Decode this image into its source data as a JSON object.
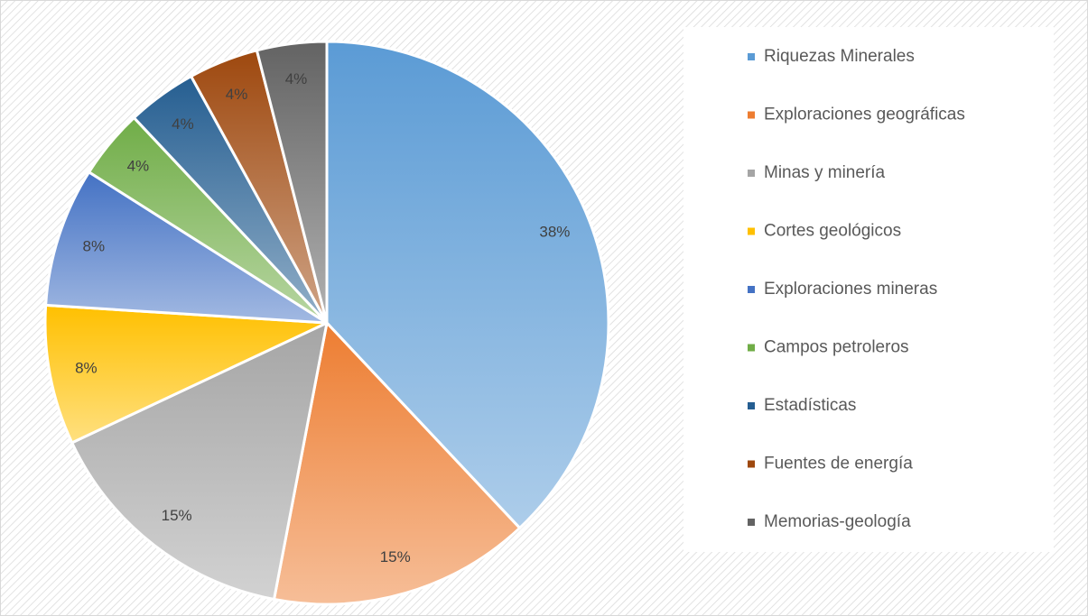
{
  "chart_data": {
    "type": "pie",
    "categories": [
      "Riquezas Minerales",
      "Exploraciones geográficas",
      "Minas y minería",
      "Cortes geológicos",
      "Exploraciones mineras",
      "Campos petroleros",
      "Estadísticas",
      "Fuentes de energía",
      "Memorias-geología"
    ],
    "values": [
      38,
      15,
      15,
      8,
      8,
      4,
      4,
      4,
      4
    ],
    "value_labels": [
      "38%",
      "15%",
      "15%",
      "8%",
      "8%",
      "4%",
      "4%",
      "4%",
      "4%"
    ],
    "colors": [
      "#5b9bd5",
      "#ed7d31",
      "#a5a5a5",
      "#ffc000",
      "#4472c4",
      "#70ad47",
      "#255e91",
      "#9e480e",
      "#636363"
    ],
    "legend": "right"
  }
}
